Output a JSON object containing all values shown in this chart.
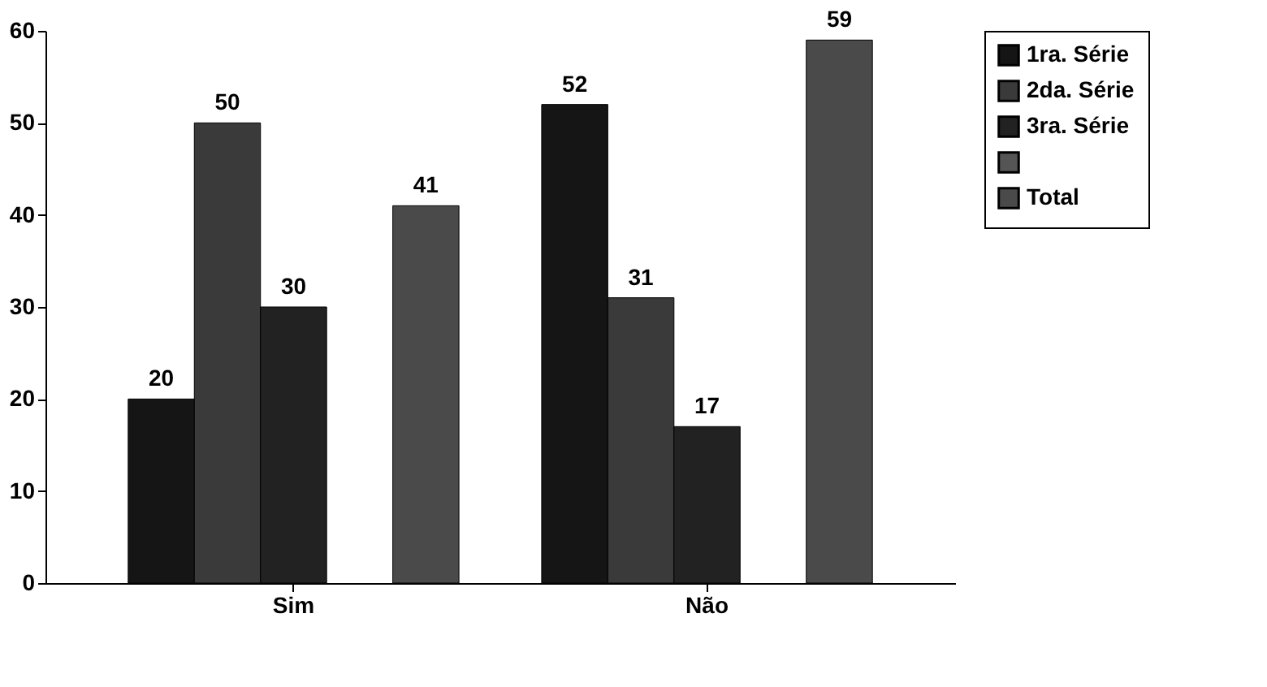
{
  "chart_data": {
    "type": "bar",
    "categories": [
      "Sim",
      "Não"
    ],
    "series": [
      {
        "name": "1ra. Série",
        "color": "#151515",
        "values": [
          20,
          52
        ]
      },
      {
        "name": "2da. Série",
        "color": "#3a3a3a",
        "values": [
          50,
          31
        ]
      },
      {
        "name": "3ra. Série",
        "color": "#222222",
        "values": [
          30,
          17
        ]
      },
      {
        "color": "#555555",
        "values": [
          null,
          null
        ]
      },
      {
        "name": "Total",
        "color": "#4a4a4a",
        "values": [
          41,
          59
        ]
      }
    ],
    "ylim": [
      0,
      60
    ],
    "yticks": [
      0,
      10,
      20,
      30,
      40,
      50,
      60
    ],
    "data_labels": true,
    "grid": false,
    "legend": "right"
  }
}
